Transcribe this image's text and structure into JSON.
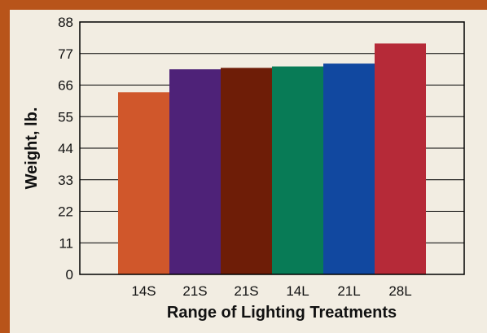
{
  "chart_data": {
    "type": "bar",
    "categories": [
      "14S",
      "21S",
      "21S",
      "14L",
      "21L",
      "28L"
    ],
    "values": [
      63.5,
      71.5,
      72,
      72.5,
      73.5,
      80.5
    ],
    "colors": [
      "#d0572b",
      "#4e2278",
      "#6e1d07",
      "#087b56",
      "#1148a0",
      "#b62a38"
    ],
    "title": "",
    "xlabel": "Range of Lighting Treatments",
    "ylabel": "Weight, lb.",
    "ylim": [
      0,
      88
    ],
    "yticks": [
      "0",
      "11",
      "22",
      "33",
      "44",
      "55",
      "66",
      "77",
      "88"
    ],
    "grid": true,
    "frame_color": "#b8541a",
    "background": "#f2ede2"
  }
}
